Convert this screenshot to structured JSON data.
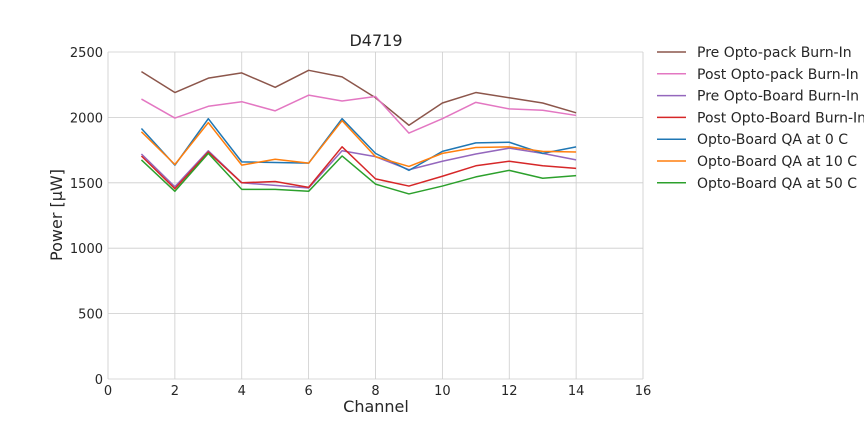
{
  "chart_data": {
    "type": "line",
    "title": "D4719",
    "xlabel": "Channel",
    "ylabel": "Power [μW]",
    "xlim": [
      0,
      16
    ],
    "ylim": [
      0,
      2500
    ],
    "xticks": [
      0,
      2,
      4,
      6,
      8,
      10,
      12,
      14,
      16
    ],
    "yticks": [
      0,
      500,
      1000,
      1500,
      2000,
      2500
    ],
    "grid": true,
    "legend_position": "outside-right",
    "x": [
      1,
      2,
      3,
      4,
      5,
      6,
      7,
      8,
      9,
      10,
      11,
      12,
      13,
      14
    ],
    "series": [
      {
        "name": "Pre Opto-pack Burn-In",
        "color": "#8c564b",
        "values": [
          2350,
          2190,
          2300,
          2340,
          2230,
          2360,
          2310,
          2150,
          1940,
          2110,
          2190,
          2150,
          2110,
          2035
        ]
      },
      {
        "name": "Post Opto-pack Burn-In",
        "color": "#e377c2",
        "values": [
          2140,
          1995,
          2085,
          2120,
          2050,
          2170,
          2125,
          2160,
          1880,
          1990,
          2115,
          2065,
          2055,
          2015
        ]
      },
      {
        "name": "Pre Opto-Board Burn-In",
        "color": "#9467bd",
        "values": [
          1720,
          1470,
          1745,
          1500,
          1480,
          1460,
          1745,
          1700,
          1600,
          1665,
          1720,
          1765,
          1725,
          1675
        ]
      },
      {
        "name": "Post Opto-Board Burn-In",
        "color": "#d62728",
        "values": [
          1705,
          1455,
          1735,
          1500,
          1510,
          1465,
          1775,
          1530,
          1475,
          1550,
          1630,
          1665,
          1630,
          1610
        ]
      },
      {
        "name": "Opto-Board QA at 0 C",
        "color": "#1f77b4",
        "values": [
          1915,
          1635,
          1990,
          1660,
          1655,
          1650,
          1990,
          1725,
          1595,
          1740,
          1805,
          1810,
          1725,
          1775
        ]
      },
      {
        "name": "Opto-Board QA at 10 C",
        "color": "#ff7f0e",
        "values": [
          1890,
          1640,
          1960,
          1635,
          1680,
          1650,
          1975,
          1700,
          1625,
          1725,
          1770,
          1775,
          1740,
          1735
        ]
      },
      {
        "name": "Opto-Board QA at 50 C",
        "color": "#2ca02c",
        "values": [
          1675,
          1435,
          1725,
          1450,
          1450,
          1435,
          1705,
          1490,
          1415,
          1475,
          1545,
          1595,
          1535,
          1555
        ]
      }
    ]
  }
}
